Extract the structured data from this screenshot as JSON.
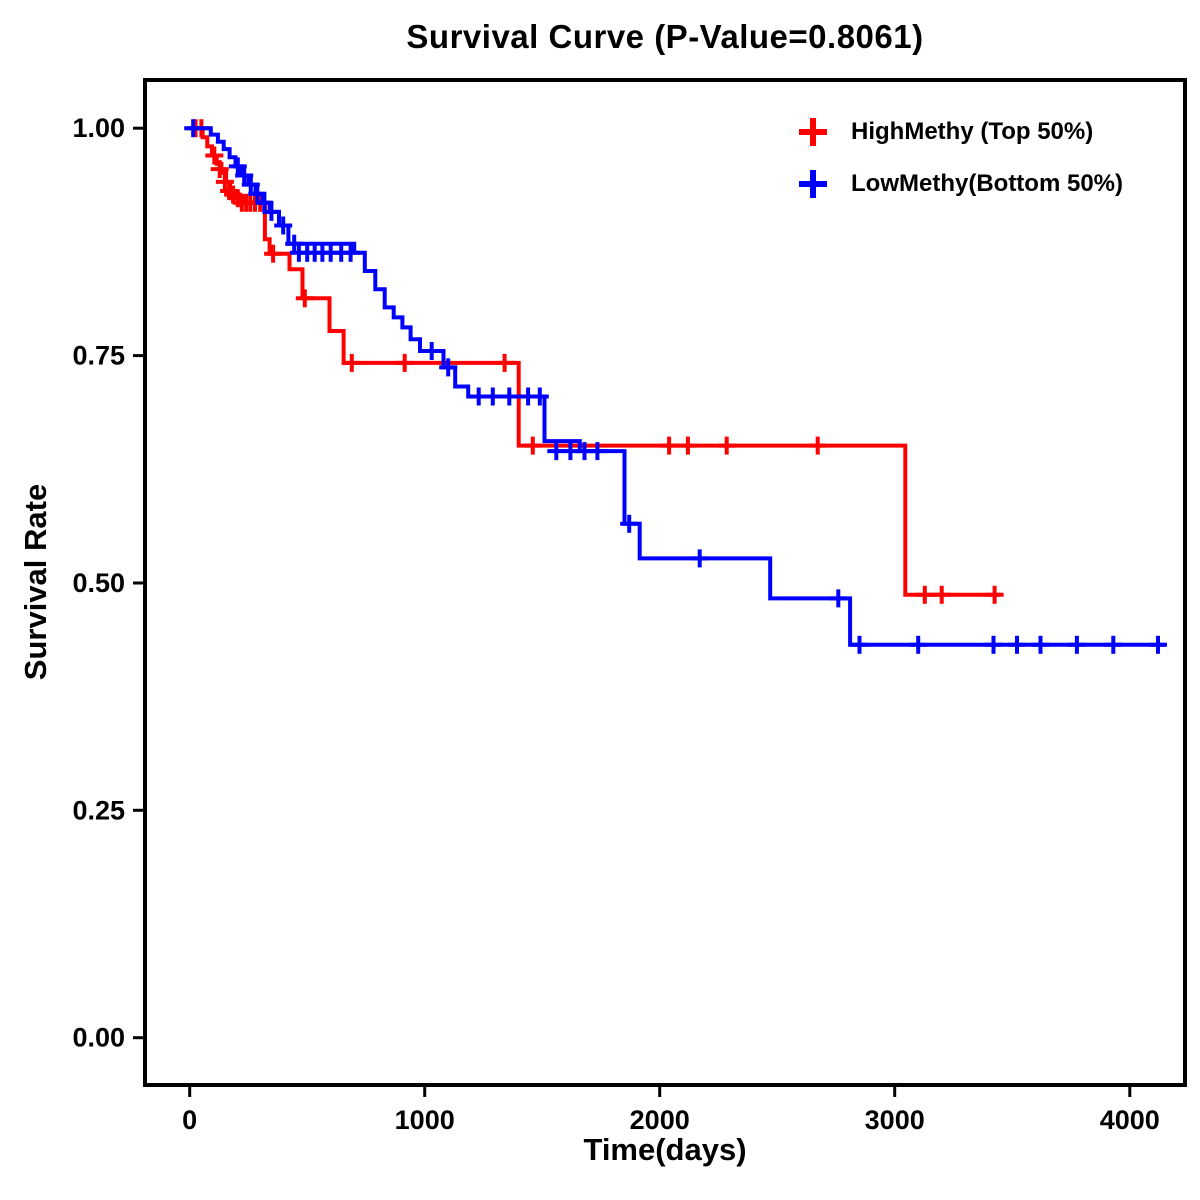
{
  "title": "Survival Curve (P-Value=0.8061)",
  "axes": {
    "x": {
      "label": "Time(days)",
      "ticks": [
        "0",
        "1000",
        "2000",
        "3000",
        "4000"
      ],
      "tick_values": [
        0,
        1000,
        2000,
        3000,
        4000
      ]
    },
    "y": {
      "label": "Survival Rate",
      "ticks": [
        "0.00",
        "0.25",
        "0.50",
        "0.75",
        "1.00"
      ],
      "tick_values": [
        0,
        0.25,
        0.5,
        0.75,
        1
      ]
    }
  },
  "legend": {
    "items": [
      {
        "label": "HighMethy (Top 50%)",
        "color": "#FF0000"
      },
      {
        "label": "LowMethy(Bottom 50%)",
        "color": "#0000FF"
      }
    ]
  },
  "chart_data": {
    "type": "line",
    "subtype": "kaplan-meier-step",
    "title": "Survival Curve (P-Value=0.8061)",
    "p_value": 0.8061,
    "xlabel": "Time(days)",
    "ylabel": "Survival Rate",
    "xlim": [
      -190,
      4235
    ],
    "ylim": [
      -0.052,
      1.053
    ],
    "grid": false,
    "legend_position": "top-right",
    "series": [
      {
        "id": "highmethy",
        "name": "HighMethy (Top 50%)",
        "color": "#FF0000",
        "end_time": 3450,
        "step_points": [
          [
            0,
            1.0
          ],
          [
            55,
            0.99
          ],
          [
            75,
            0.98
          ],
          [
            95,
            0.97
          ],
          [
            115,
            0.961
          ],
          [
            135,
            0.951
          ],
          [
            155,
            0.941
          ],
          [
            172,
            0.931
          ],
          [
            195,
            0.925
          ],
          [
            230,
            0.918
          ],
          [
            320,
            0.878
          ],
          [
            340,
            0.862
          ],
          [
            425,
            0.845
          ],
          [
            480,
            0.813
          ],
          [
            595,
            0.777
          ],
          [
            655,
            0.742
          ],
          [
            1400,
            0.651
          ],
          [
            3045,
            0.487
          ]
        ],
        "censor_marks": [
          [
            25,
            1.0
          ],
          [
            50,
            1.0
          ],
          [
            105,
            0.97
          ],
          [
            128,
            0.955
          ],
          [
            150,
            0.941
          ],
          [
            168,
            0.931
          ],
          [
            185,
            0.927
          ],
          [
            205,
            0.923
          ],
          [
            222,
            0.918
          ],
          [
            240,
            0.918
          ],
          [
            258,
            0.918
          ],
          [
            278,
            0.918
          ],
          [
            300,
            0.918
          ],
          [
            355,
            0.862
          ],
          [
            490,
            0.813
          ],
          [
            690,
            0.742
          ],
          [
            915,
            0.742
          ],
          [
            1340,
            0.742
          ],
          [
            1460,
            0.651
          ],
          [
            2040,
            0.651
          ],
          [
            2120,
            0.651
          ],
          [
            2285,
            0.651
          ],
          [
            2672,
            0.651
          ],
          [
            3128,
            0.487
          ],
          [
            3200,
            0.487
          ],
          [
            3425,
            0.487
          ]
        ]
      },
      {
        "id": "lowmethy",
        "name": "LowMethy(Bottom 50%)",
        "color": "#0000FF",
        "end_time": 4150,
        "step_points": [
          [
            0,
            1.0
          ],
          [
            90,
            0.993
          ],
          [
            120,
            0.985
          ],
          [
            145,
            0.977
          ],
          [
            170,
            0.968
          ],
          [
            195,
            0.958
          ],
          [
            220,
            0.948
          ],
          [
            250,
            0.938
          ],
          [
            280,
            0.928
          ],
          [
            310,
            0.918
          ],
          [
            340,
            0.908
          ],
          [
            380,
            0.893
          ],
          [
            420,
            0.873
          ],
          [
            700,
            0.863
          ],
          [
            745,
            0.843
          ],
          [
            790,
            0.823
          ],
          [
            830,
            0.803
          ],
          [
            868,
            0.792
          ],
          [
            905,
            0.781
          ],
          [
            940,
            0.768
          ],
          [
            980,
            0.755
          ],
          [
            1080,
            0.737
          ],
          [
            1130,
            0.716
          ],
          [
            1185,
            0.705
          ],
          [
            1510,
            0.656
          ],
          [
            1660,
            0.645
          ],
          [
            1850,
            0.565
          ],
          [
            1915,
            0.527
          ],
          [
            2470,
            0.483
          ],
          [
            2810,
            0.432
          ]
        ],
        "censor_marks": [
          [
            15,
            1.0
          ],
          [
            205,
            0.958
          ],
          [
            232,
            0.948
          ],
          [
            260,
            0.938
          ],
          [
            288,
            0.928
          ],
          [
            318,
            0.918
          ],
          [
            348,
            0.908
          ],
          [
            398,
            0.893
          ],
          [
            445,
            0.873
          ],
          [
            465,
            0.863
          ],
          [
            500,
            0.863
          ],
          [
            532,
            0.863
          ],
          [
            565,
            0.863
          ],
          [
            600,
            0.863
          ],
          [
            645,
            0.863
          ],
          [
            685,
            0.863
          ],
          [
            1030,
            0.755
          ],
          [
            1100,
            0.737
          ],
          [
            1230,
            0.705
          ],
          [
            1290,
            0.705
          ],
          [
            1360,
            0.705
          ],
          [
            1440,
            0.705
          ],
          [
            1490,
            0.705
          ],
          [
            1560,
            0.645
          ],
          [
            1620,
            0.645
          ],
          [
            1680,
            0.645
          ],
          [
            1735,
            0.645
          ],
          [
            1870,
            0.565
          ],
          [
            2170,
            0.527
          ],
          [
            2760,
            0.483
          ],
          [
            2850,
            0.432
          ],
          [
            3100,
            0.432
          ],
          [
            3420,
            0.432
          ],
          [
            3520,
            0.432
          ],
          [
            3620,
            0.432
          ],
          [
            3775,
            0.432
          ],
          [
            3930,
            0.432
          ],
          [
            4120,
            0.432
          ]
        ]
      }
    ]
  }
}
